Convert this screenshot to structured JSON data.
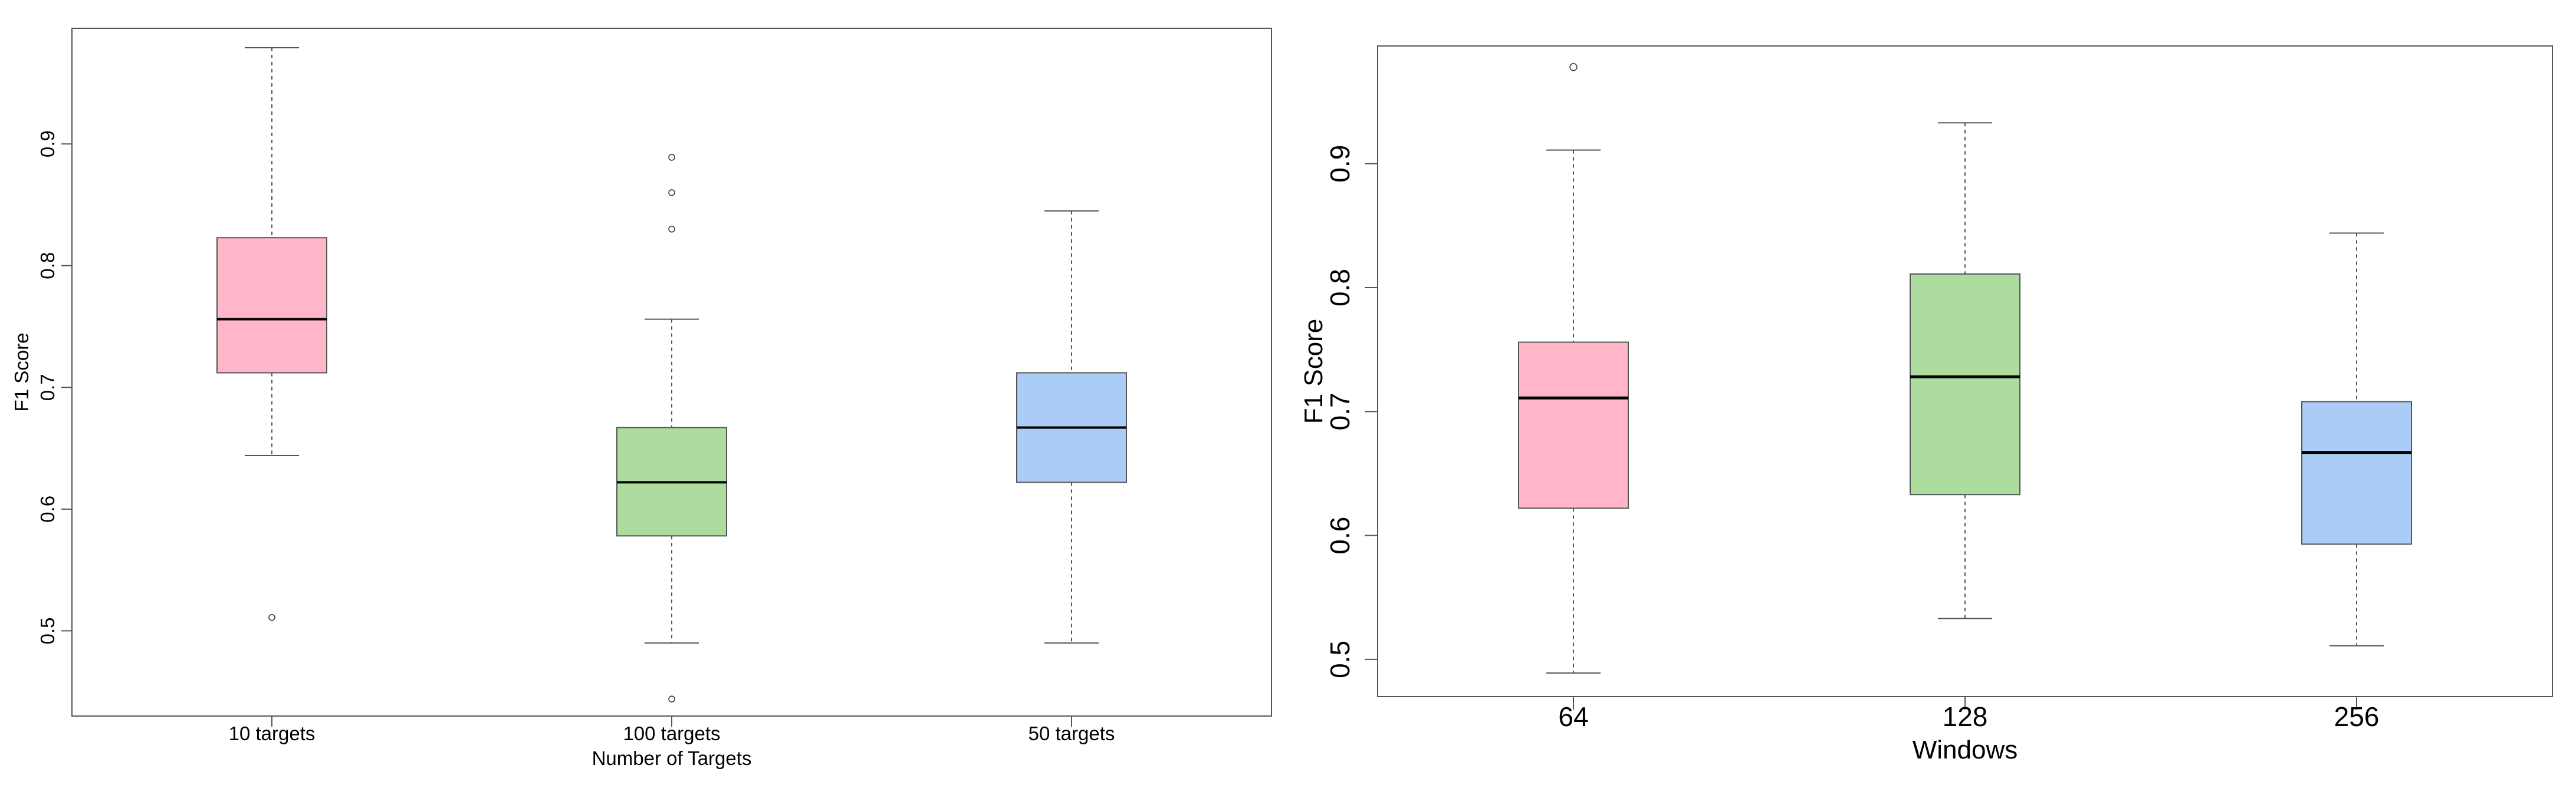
{
  "chart_data": [
    {
      "type": "boxplot",
      "title": "",
      "xlabel": "Number of Targets",
      "ylabel": "F1 Score",
      "ylim": [
        0.43,
        0.995
      ],
      "yticks": [
        0.5,
        0.6,
        0.7,
        0.8,
        0.9
      ],
      "ytick_labels": [
        "0.5",
        "0.6",
        "0.7",
        "0.8",
        "0.9"
      ],
      "categories": [
        "10 targets",
        "100 targets",
        "50 targets"
      ],
      "colors": [
        "#ffb6c8",
        "#addc9f",
        "#abcdf5"
      ],
      "boxes": [
        {
          "label": "10 targets",
          "whisker_low": 0.644,
          "q1": 0.712,
          "median": 0.756,
          "q3": 0.823,
          "whisker_high": 0.979,
          "outliers": [
            0.511
          ]
        },
        {
          "label": "100 targets",
          "whisker_low": 0.49,
          "q1": 0.578,
          "median": 0.622,
          "q3": 0.667,
          "whisker_high": 0.756,
          "outliers": [
            0.83,
            0.86,
            0.889,
            0.444
          ]
        },
        {
          "label": "50 targets",
          "whisker_low": 0.49,
          "q1": 0.622,
          "median": 0.667,
          "q3": 0.712,
          "whisker_high": 0.845,
          "outliers": []
        }
      ]
    },
    {
      "type": "boxplot",
      "title": "",
      "xlabel": "Windows",
      "ylabel": "F1 Score",
      "ylim": [
        0.47,
        0.995
      ],
      "yticks": [
        0.5,
        0.6,
        0.7,
        0.8,
        0.9
      ],
      "ytick_labels": [
        "0.5",
        "0.6",
        "0.7",
        "0.8",
        "0.9"
      ],
      "categories": [
        "64",
        "128",
        "256"
      ],
      "colors": [
        "#ffb6c8",
        "#addc9f",
        "#abcdf5"
      ],
      "boxes": [
        {
          "label": "64",
          "whisker_low": 0.489,
          "q1": 0.622,
          "median": 0.711,
          "q3": 0.756,
          "whisker_high": 0.911,
          "outliers": [
            0.978
          ]
        },
        {
          "label": "128",
          "whisker_low": 0.533,
          "q1": 0.633,
          "median": 0.728,
          "q3": 0.811,
          "whisker_high": 0.933,
          "outliers": []
        },
        {
          "label": "256",
          "whisker_low": 0.511,
          "q1": 0.593,
          "median": 0.667,
          "q3": 0.708,
          "whisker_high": 0.844,
          "outliers": []
        }
      ]
    }
  ]
}
